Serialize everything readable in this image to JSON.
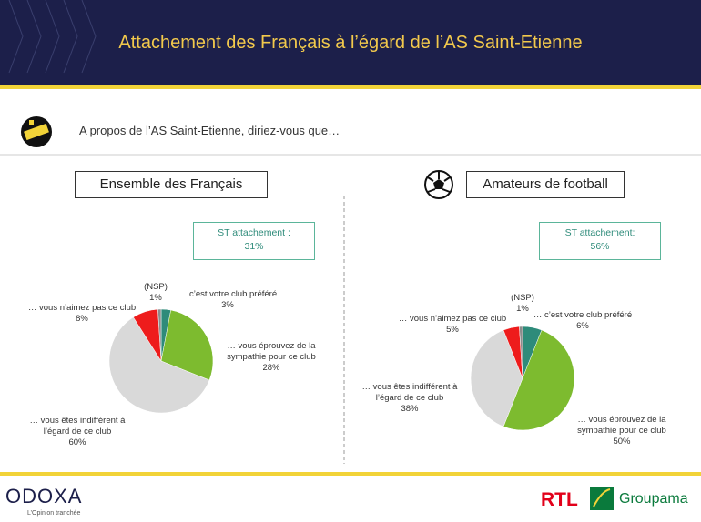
{
  "header": {
    "title": "Attachement des Français à l’égard de l’AS Saint-Etienne",
    "question": "A propos de l’AS Saint-Etienne, diriez-vous que…"
  },
  "chart_data": [
    {
      "type": "pie",
      "title": "Ensemble des Français",
      "annotation": [
        "ST attachement :",
        "31%"
      ],
      "categories": [
        "… c’est votre club préféré",
        "… vous éprouvez de la sympathie pour ce club",
        "… vous êtes indifférent à l’égard de ce club",
        "… vous n’aimez pas ce club",
        "(NSP)"
      ],
      "values": [
        3,
        28,
        60,
        8,
        1
      ],
      "value_labels": [
        "3%",
        "28%",
        "60%",
        "8%",
        "1%"
      ],
      "colors": [
        "#2e8b7a",
        "#7dbb2f",
        "#d9d9d9",
        "#ee1c1c",
        "#8c8c8c"
      ]
    },
    {
      "type": "pie",
      "title": "Amateurs de football",
      "annotation": [
        "ST attachement:",
        "56%"
      ],
      "categories": [
        "… c’est votre club préféré",
        "… vous éprouvez de la sympathie pour ce club",
        "… vous êtes indifférent à l’égard de ce club",
        "… vous n’aimez pas ce club",
        "(NSP)"
      ],
      "values": [
        6,
        50,
        38,
        5,
        1
      ],
      "value_labels": [
        "6%",
        "50%",
        "38%",
        "5%",
        "1%"
      ],
      "colors": [
        "#2e8b7a",
        "#7dbb2f",
        "#d9d9d9",
        "#ee1c1c",
        "#8c8c8c"
      ]
    }
  ],
  "footer": {
    "brand": "ODOXA",
    "tagline": "L’Opinion tranchée",
    "partner1": "RTL",
    "partner2": "Groupama"
  }
}
